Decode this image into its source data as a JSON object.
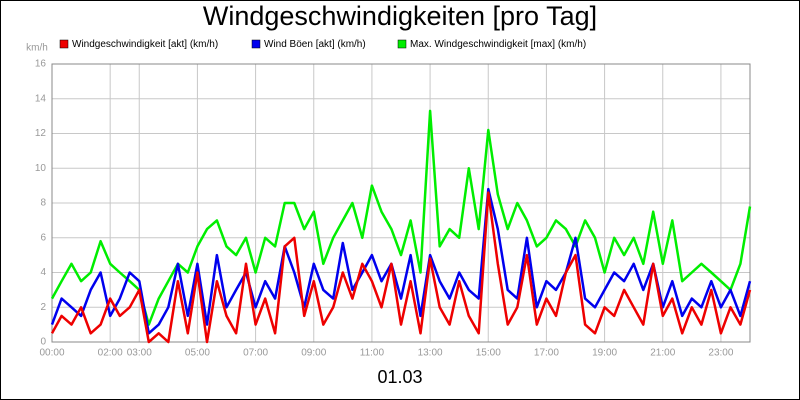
{
  "chart_data": {
    "type": "line",
    "title": "Windgeschwindigkeiten [pro Tag]",
    "subtitle": "01.03",
    "y_unit": "km/h",
    "x": [
      0,
      0.33,
      0.67,
      1,
      1.33,
      1.67,
      2,
      2.33,
      2.67,
      3,
      3.33,
      3.67,
      4,
      4.33,
      4.67,
      5,
      5.33,
      5.67,
      6,
      6.33,
      6.67,
      7,
      7.33,
      7.67,
      8,
      8.33,
      8.67,
      9,
      9.33,
      9.67,
      10,
      10.33,
      10.67,
      11,
      11.33,
      11.67,
      12,
      12.33,
      12.67,
      13,
      13.33,
      13.67,
      14,
      14.33,
      14.67,
      15,
      15.33,
      15.67,
      16,
      16.33,
      16.67,
      17,
      17.33,
      17.67,
      18,
      18.33,
      18.67,
      19,
      19.33,
      19.67,
      20,
      20.33,
      20.67,
      21,
      21.33,
      21.67,
      22,
      22.33,
      22.67,
      23,
      23.33,
      23.67,
      24
    ],
    "series": [
      {
        "name": "Windgeschwindigkeit [akt] (km/h)",
        "color": "#ee0000",
        "values": [
          0.5,
          1.5,
          1.0,
          2.0,
          0.5,
          1.0,
          2.5,
          1.5,
          2.0,
          3.0,
          0,
          0.5,
          0,
          3.5,
          0.5,
          4.0,
          0,
          3.5,
          1.5,
          0.5,
          4.5,
          1.0,
          2.5,
          0.5,
          5.5,
          6.0,
          1.5,
          3.5,
          1.0,
          2.0,
          4.0,
          2.5,
          4.5,
          3.5,
          2.0,
          4.5,
          1.0,
          3.5,
          0.5,
          4.8,
          2.0,
          1.0,
          3.5,
          1.5,
          0.5,
          8.6,
          4.5,
          1.0,
          2.0,
          5.0,
          1.0,
          2.5,
          1.5,
          4.0,
          5.0,
          1.0,
          0.5,
          2.0,
          1.5,
          3.0,
          2.0,
          1.0,
          4.5,
          1.5,
          2.5,
          0.5,
          2.0,
          1.0,
          3.0,
          0.5,
          2.0,
          1.0,
          3.0
        ]
      },
      {
        "name": "Wind Böen [akt] (km/h)",
        "color": "#0000ee",
        "values": [
          1.0,
          2.5,
          2.0,
          1.5,
          3.0,
          4.0,
          1.5,
          2.5,
          4.0,
          3.5,
          0.5,
          1.0,
          2.0,
          4.5,
          1.5,
          4.5,
          1.0,
          5.0,
          2.0,
          3.0,
          4.0,
          2.0,
          3.5,
          2.5,
          5.5,
          4.0,
          2.0,
          4.5,
          3.0,
          2.5,
          5.7,
          3.0,
          4.0,
          5.0,
          3.5,
          4.5,
          2.5,
          5.0,
          1.5,
          5.0,
          3.5,
          2.5,
          4.0,
          3.0,
          2.5,
          8.8,
          6.5,
          3.0,
          2.5,
          6.0,
          2.0,
          3.5,
          3.0,
          4.0,
          6.0,
          2.5,
          2.0,
          3.0,
          4.0,
          3.5,
          4.5,
          3.0,
          4.5,
          2.0,
          3.5,
          1.5,
          2.5,
          2.0,
          3.5,
          2.0,
          3.0,
          1.5,
          3.5
        ]
      },
      {
        "name": "Max. Windgeschwindigkeit [max] (km/h)",
        "color": "#00ee00",
        "values": [
          2.5,
          3.5,
          4.5,
          3.5,
          4.0,
          5.8,
          4.5,
          4.0,
          3.5,
          3.0,
          1.0,
          2.5,
          3.5,
          4.5,
          4.0,
          5.5,
          6.5,
          7.0,
          5.5,
          5.0,
          6.0,
          4.0,
          6.0,
          5.5,
          8.0,
          8.0,
          6.5,
          7.5,
          4.5,
          6.0,
          7.0,
          8.0,
          6.0,
          9.0,
          7.5,
          6.5,
          5.0,
          7.0,
          4.0,
          13.3,
          5.5,
          6.5,
          6.0,
          10.0,
          6.5,
          12.2,
          8.5,
          6.5,
          8.0,
          7.0,
          5.5,
          6.0,
          7.0,
          6.5,
          5.5,
          7.0,
          6.0,
          4.0,
          6.0,
          5.0,
          6.0,
          4.5,
          7.5,
          4.5,
          7.0,
          3.5,
          4.0,
          4.5,
          4.0,
          3.5,
          3.0,
          4.5,
          7.8
        ]
      }
    ],
    "xlim": [
      0,
      24
    ],
    "xticks": [
      {
        "value": 0,
        "label": "00:00"
      },
      {
        "value": 2,
        "label": "02:00"
      },
      {
        "value": 3,
        "label": "03:00"
      },
      {
        "value": 5,
        "label": "05:00"
      },
      {
        "value": 7,
        "label": "07:00"
      },
      {
        "value": 9,
        "label": "09:00"
      },
      {
        "value": 11,
        "label": "11:00"
      },
      {
        "value": 13,
        "label": "13:00"
      },
      {
        "value": 15,
        "label": "15:00"
      },
      {
        "value": 17,
        "label": "17:00"
      },
      {
        "value": 19,
        "label": "19:00"
      },
      {
        "value": 21,
        "label": "21:00"
      },
      {
        "value": 23,
        "label": "23:00"
      }
    ],
    "ylim": [
      0,
      16
    ],
    "yticks": [
      0,
      2,
      4,
      6,
      8,
      10,
      12,
      14,
      16
    ],
    "grid": true
  }
}
